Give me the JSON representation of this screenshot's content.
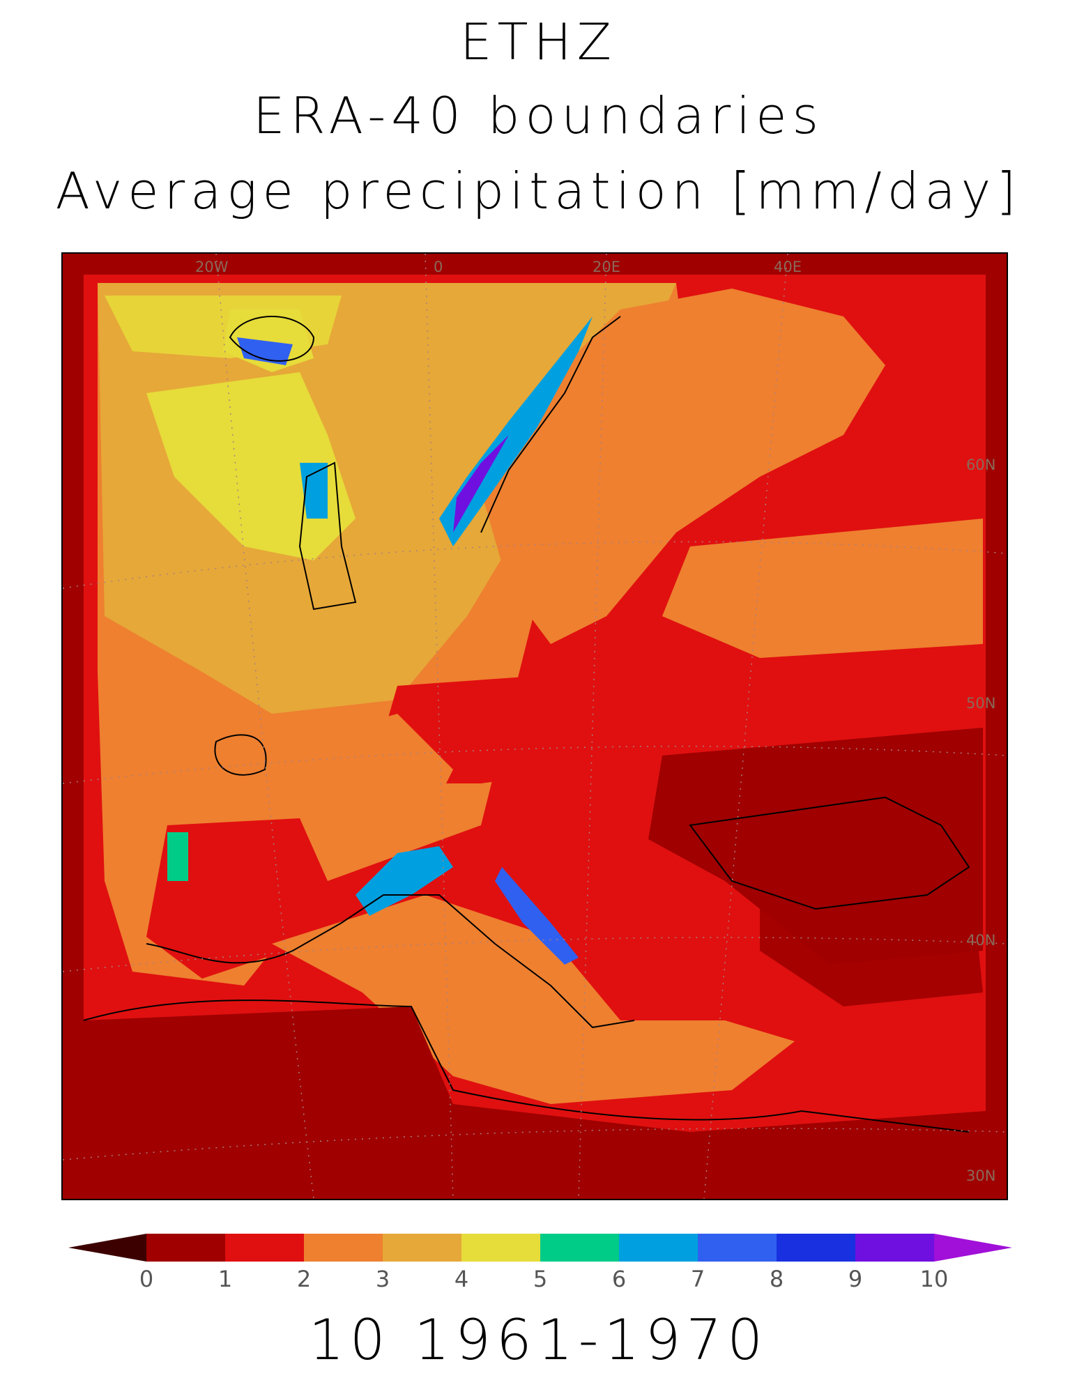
{
  "title": {
    "line1": "ETHZ",
    "line2": "ERA-40 boundaries",
    "line3": "Average precipitation [mm/day]"
  },
  "period": "10 1961-1970",
  "map": {
    "lon_labels": [
      "20W",
      "0",
      "20E",
      "40E"
    ],
    "lat_labels": [
      "60N",
      "50N",
      "40N",
      "30N"
    ]
  },
  "colorbar": {
    "ticks": [
      "0",
      "1",
      "2",
      "3",
      "4",
      "5",
      "6",
      "7",
      "8",
      "9",
      "10"
    ],
    "colors": {
      "under": "#3d0000",
      "bins": [
        "#a00000",
        "#e01010",
        "#ee8030",
        "#e6a838",
        "#e6dc3a",
        "#00cc88",
        "#00a0e0",
        "#3060f0",
        "#1830e0",
        "#7010e0"
      ],
      "over": "#a010d8"
    }
  },
  "palette": {
    "dark_red": "#a00000",
    "red": "#e01010",
    "orange": "#ee8030",
    "light_orange": "#e6a838",
    "yellow": "#e6dc3a",
    "teal": "#00cc88",
    "cyan": "#00a0e0",
    "blue": "#3060f0",
    "purple": "#7010e0"
  }
}
